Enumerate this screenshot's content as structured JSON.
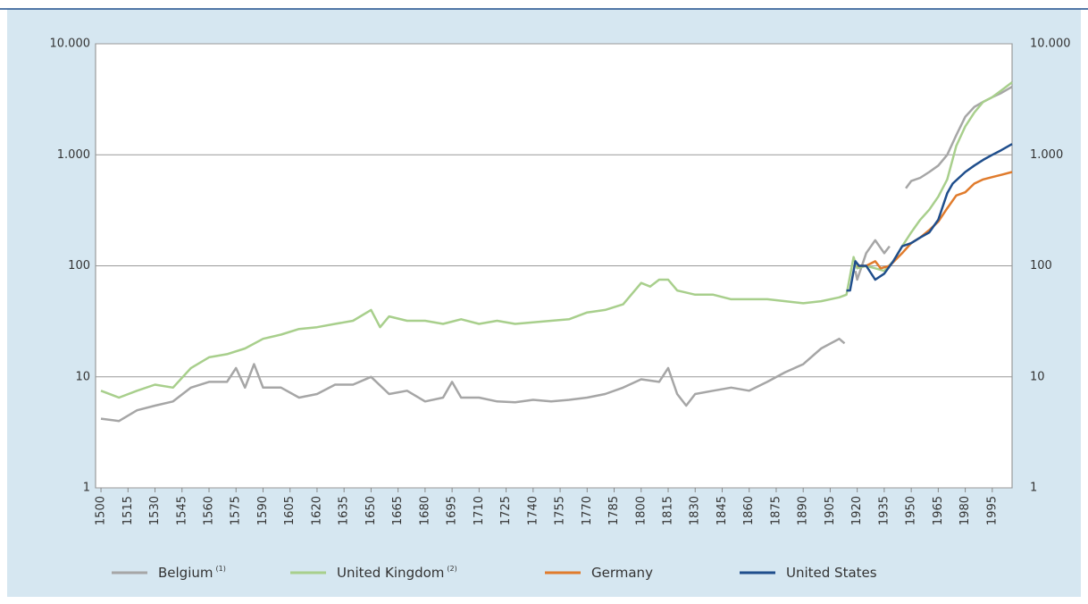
{
  "chart_data": {
    "type": "line",
    "log_y": true,
    "grid": true,
    "xlim": [
      1497,
      2006
    ],
    "xticks": [
      1500,
      1515,
      1530,
      1545,
      1560,
      1575,
      1590,
      1605,
      1620,
      1635,
      1650,
      1665,
      1680,
      1695,
      1710,
      1725,
      1740,
      1755,
      1770,
      1785,
      1800,
      1815,
      1830,
      1845,
      1860,
      1875,
      1890,
      1905,
      1920,
      1935,
      1950,
      1965,
      1980,
      1995
    ],
    "ylim": [
      1,
      10000
    ],
    "yticks": [
      1,
      10,
      100,
      {
        "value": 1000,
        "label": "1.000"
      },
      {
        "value": 10000,
        "label": "10.000"
      }
    ],
    "series": [
      {
        "name": "Belgium",
        "footnote": "(1)",
        "color": "#a6a6a6",
        "x": [
          1500,
          1510,
          1520,
          1530,
          1540,
          1550,
          1560,
          1570,
          1575,
          1580,
          1585,
          1590,
          1600,
          1610,
          1620,
          1630,
          1640,
          1650,
          1660,
          1670,
          1680,
          1690,
          1695,
          1700,
          1710,
          1720,
          1730,
          1740,
          1750,
          1760,
          1770,
          1780,
          1790,
          1800,
          1810,
          1815,
          1820,
          1825,
          1830,
          1840,
          1850,
          1860,
          1870,
          1880,
          1890,
          1900,
          1910,
          1913,
          1916,
          1919,
          1920,
          1925,
          1930,
          1935,
          1938,
          1942,
          1947,
          1950,
          1955,
          1960,
          1965,
          1970,
          1975,
          1980,
          1985,
          1990,
          1995,
          2000,
          2006
        ],
        "values": [
          4.2,
          4,
          5,
          5.5,
          6,
          8,
          9,
          9,
          12,
          8,
          13,
          8,
          8,
          6.5,
          7,
          8.5,
          8.5,
          10,
          7,
          7.5,
          6,
          6.5,
          9,
          6.5,
          6.5,
          6,
          5.9,
          6.2,
          6,
          6.2,
          6.5,
          7,
          8,
          9.5,
          9,
          12,
          7,
          5.5,
          7,
          7.5,
          8,
          7.5,
          9,
          11,
          13,
          18,
          22,
          20,
          null,
          90,
          75,
          130,
          170,
          130,
          150,
          null,
          500,
          580,
          620,
          700,
          800,
          1000,
          1500,
          2200,
          2700,
          3000,
          3300,
          3600,
          4100
        ]
      },
      {
        "name": "United Kingdom",
        "footnote": "(2)",
        "color": "#a8cf8c",
        "x": [
          1500,
          1510,
          1520,
          1530,
          1540,
          1550,
          1560,
          1570,
          1580,
          1590,
          1600,
          1610,
          1620,
          1630,
          1640,
          1650,
          1655,
          1660,
          1670,
          1680,
          1690,
          1700,
          1710,
          1720,
          1730,
          1740,
          1750,
          1760,
          1770,
          1780,
          1790,
          1800,
          1805,
          1810,
          1815,
          1820,
          1830,
          1840,
          1850,
          1860,
          1870,
          1880,
          1890,
          1900,
          1910,
          1914,
          1918,
          1920,
          1925,
          1930,
          1935,
          1940,
          1945,
          1950,
          1955,
          1960,
          1965,
          1970,
          1975,
          1980,
          1985,
          1990,
          1995,
          2000,
          2006
        ],
        "values": [
          7.5,
          6.5,
          7.5,
          8.5,
          8,
          12,
          15,
          16,
          18,
          22,
          24,
          27,
          28,
          30,
          32,
          40,
          28,
          35,
          32,
          32,
          30,
          33,
          30,
          32,
          30,
          31,
          32,
          33,
          38,
          40,
          45,
          70,
          65,
          75,
          75,
          60,
          55,
          55,
          50,
          50,
          50,
          48,
          46,
          48,
          52,
          55,
          120,
          95,
          100,
          95,
          90,
          110,
          150,
          200,
          260,
          320,
          420,
          600,
          1200,
          1800,
          2400,
          3000,
          3300,
          3800,
          4500
        ]
      },
      {
        "name": "Germany",
        "color": "#e07b2c",
        "x": [
          1920,
          1925,
          1930,
          1933,
          1938,
          1945,
          1950,
          1955,
          1960,
          1965,
          1970,
          1975,
          1980,
          1985,
          1990,
          1995,
          2000,
          2006
        ],
        "values": [
          100,
          100,
          110,
          95,
          100,
          130,
          160,
          180,
          210,
          250,
          330,
          430,
          460,
          550,
          600,
          630,
          660,
          700
        ]
      },
      {
        "name": "United States",
        "color": "#1f4e8c",
        "x": [
          1914,
          1916,
          1919,
          1921,
          1925,
          1930,
          1935,
          1940,
          1945,
          1950,
          1955,
          1960,
          1965,
          1970,
          1973,
          1980,
          1985,
          1990,
          1995,
          2000,
          2006
        ],
        "values": [
          60,
          60,
          110,
          100,
          100,
          75,
          85,
          110,
          150,
          160,
          180,
          200,
          260,
          450,
          550,
          700,
          800,
          900,
          1000,
          1100,
          1250
        ]
      }
    ]
  }
}
